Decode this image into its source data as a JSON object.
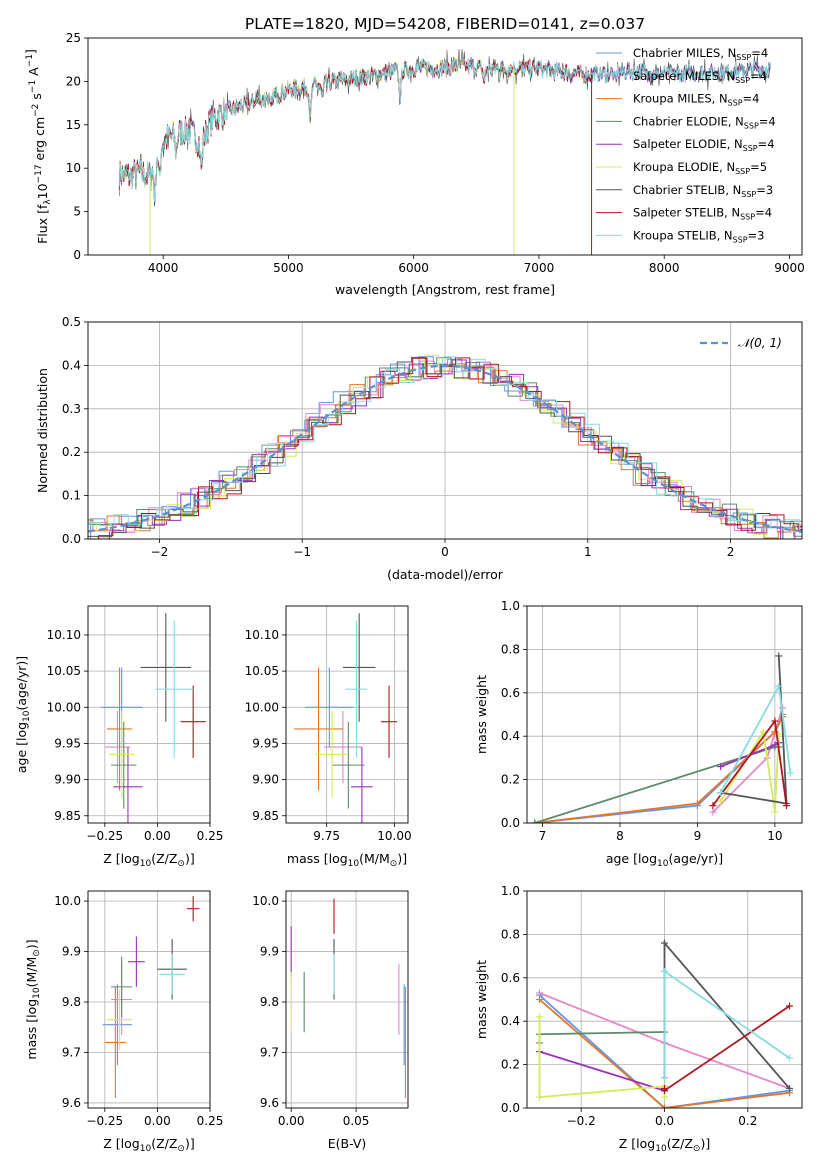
{
  "figure_title": "PLATE=1820, MJD=54208, FIBERID=0141, z=0.037",
  "colors": {
    "Chabrier MILES": "#6495ED",
    "Salpeter MILES": "#E887C7",
    "Kroupa MILES": "#E2772A",
    "Chabrier ELODIE": "#5E8B69",
    "Salpeter ELODIE": "#9B30B8",
    "Kroupa ELODIE": "#D4EC5A",
    "Chabrier STELIB": "#555555",
    "Salpeter STELIB": "#B0151F",
    "Kroupa STELIB": "#86DCE0"
  },
  "chart_data": [
    {
      "id": "spectrum",
      "type": "line",
      "title": "PLATE=1820, MJD=54208, FIBERID=0141, z=0.037",
      "xlabel": "wavelength [Angstrom, rest frame]",
      "ylabel_main": "Flux [f",
      "ylabel_sub": "λ",
      "ylabel_rest": "10",
      "ylabel_exp1": "−17",
      "ylabel_mid": " erg cm",
      "ylabel_exp2": "−2",
      "ylabel_mid2": " s",
      "ylabel_exp3": "−1",
      "ylabel_end": " A",
      "ylabel_exp4": "−1",
      "ylabel_close": "]",
      "xlim": [
        3400,
        9100
      ],
      "ylim": [
        0,
        25
      ],
      "xticks": [
        4000,
        5000,
        6000,
        7000,
        8000,
        9000
      ],
      "yticks": [
        0,
        5,
        10,
        15,
        20,
        25
      ],
      "grid": false,
      "legend_position": "top-right",
      "legend": [
        {
          "name": "Chabrier MILES, N",
          "sub": "SSP",
          "tail": "=4"
        },
        {
          "name": "Salpeter MILES, N",
          "sub": "SSP",
          "tail": "=4"
        },
        {
          "name": "Kroupa MILES, N",
          "sub": "SSP",
          "tail": "=4"
        },
        {
          "name": "Chabrier ELODIE, N",
          "sub": "SSP",
          "tail": "=4"
        },
        {
          "name": "Salpeter ELODIE, N",
          "sub": "SSP",
          "tail": "=4"
        },
        {
          "name": "Kroupa ELODIE, N",
          "sub": "SSP",
          "tail": "=5"
        },
        {
          "name": "Chabrier STELIB, N",
          "sub": "SSP",
          "tail": "=3"
        },
        {
          "name": "Salpeter STELIB, N",
          "sub": "SSP",
          "tail": "=4"
        },
        {
          "name": "Kroupa STELIB, N",
          "sub": "SSP",
          "tail": "=3"
        }
      ],
      "continuum": {
        "x": [
          3650,
          3700,
          3800,
          3900,
          3950,
          4000,
          4100,
          4200,
          4300,
          4400,
          4500,
          4600,
          4800,
          5000,
          5200,
          5400,
          5600,
          5800,
          6000,
          6200,
          6400,
          6600,
          6800,
          7000,
          7200,
          7400,
          7600,
          7800,
          8000,
          8200,
          8400,
          8600,
          8850
        ],
        "y": [
          9.5,
          9.0,
          9.5,
          9.0,
          12.5,
          13.0,
          14.0,
          14.5,
          13.0,
          16.0,
          16.5,
          17.0,
          18.0,
          19.0,
          19.5,
          20.0,
          20.5,
          21.0,
          21.5,
          21.5,
          21.8,
          21.5,
          21.5,
          21.5,
          21.0,
          20.8,
          21.0,
          21.2,
          20.8,
          21.0,
          21.0,
          21.2,
          21.5
        ]
      },
      "absorption_features": [
        {
          "x": 3934,
          "depth": 4.5
        },
        {
          "x": 3969,
          "depth": 4.0
        },
        {
          "x": 4102,
          "depth": 2.0
        },
        {
          "x": 4305,
          "depth": 3.0
        },
        {
          "x": 4861,
          "depth": 1.5
        },
        {
          "x": 5175,
          "depth": 3.5
        },
        {
          "x": 5270,
          "depth": 1.5
        },
        {
          "x": 5892,
          "depth": 3.0
        },
        {
          "x": 6563,
          "depth": 1.5
        },
        {
          "x": 7605,
          "depth": 1.0
        }
      ],
      "drop_lines": [
        {
          "series": "Kroupa ELODIE",
          "x": 3895
        },
        {
          "series": "Kroupa ELODIE",
          "x": 6800
        },
        {
          "series": "Salpeter STELIB",
          "x": 7420
        }
      ],
      "series_end_x": {
        "Kroupa MILES": 7420,
        "Salpeter STELIB": 7420,
        "Kroupa ELODIE": 6800
      }
    },
    {
      "id": "residuals",
      "type": "histogram",
      "xlabel": "(data-model)/error",
      "ylabel": "Normed distribution",
      "xlim": [
        -2.5,
        2.5
      ],
      "ylim": [
        0,
        0.5
      ],
      "xticks": [
        -2,
        -1,
        0,
        1,
        2
      ],
      "xtick_labels": [
        "−2",
        "−1",
        "0",
        "1",
        "2"
      ],
      "yticks": [
        0.0,
        0.1,
        0.2,
        0.3,
        0.4,
        0.5
      ],
      "ytick_labels": [
        "0.0",
        "0.1",
        "0.2",
        "0.3",
        "0.4",
        "0.5"
      ],
      "grid": true,
      "legend_position": "top-right",
      "legend": [
        {
          "name": "𝒩(0, 1)"
        }
      ],
      "bin_width": 0.1,
      "reference_curve": {
        "name": "𝒩(0, 1)",
        "color": "#5B8FD6",
        "style": "dashed"
      }
    },
    {
      "id": "age-vs-Z",
      "type": "errorbar",
      "xlabel": "Z [log",
      "xlabel_sub": "10",
      "xlabel_tail": "(Z/Z",
      "xlabel_sun_sub": "⊙",
      "xlabel_close": ")]",
      "ylabel": "age  [log",
      "ylabel_sub": "10",
      "ylabel_tail": "(age/yr)]",
      "xlim": [
        -0.33,
        0.25
      ],
      "ylim": [
        9.84,
        10.14
      ],
      "xticks": [
        -0.25,
        0.0,
        0.25
      ],
      "xtick_labels": [
        "−0.25",
        "0.00",
        "0.25"
      ],
      "yticks": [
        9.85,
        9.9,
        9.95,
        10.0,
        10.05,
        10.1
      ],
      "ytick_labels": [
        "9.85",
        "9.90",
        "9.95",
        "10.00",
        "10.05",
        "10.10"
      ],
      "grid": true,
      "points": [
        {
          "series": "Chabrier MILES",
          "x": -0.17,
          "xerr": 0.1,
          "y": 10.0,
          "yerr": 0.055
        },
        {
          "series": "Salpeter MILES",
          "x": -0.19,
          "xerr": 0.06,
          "y": 9.945,
          "yerr": 0.05
        },
        {
          "series": "Kroupa MILES",
          "x": -0.18,
          "xerr": 0.06,
          "y": 9.97,
          "yerr": 0.085
        },
        {
          "series": "Chabrier ELODIE",
          "x": -0.16,
          "xerr": 0.06,
          "y": 9.92,
          "yerr": 0.06
        },
        {
          "series": "Salpeter ELODIE",
          "x": -0.14,
          "xerr": 0.07,
          "y": 9.89,
          "yerr": 0.055
        },
        {
          "series": "Kroupa ELODIE",
          "x": -0.17,
          "xerr": 0.06,
          "y": 9.935,
          "yerr": 0.06
        },
        {
          "series": "Chabrier STELIB",
          "x": 0.04,
          "xerr": 0.12,
          "y": 10.055,
          "yerr": 0.075
        },
        {
          "series": "Salpeter STELIB",
          "x": 0.17,
          "xerr": 0.06,
          "y": 9.98,
          "yerr": 0.05
        },
        {
          "series": "Kroupa STELIB",
          "x": 0.08,
          "xerr": 0.09,
          "y": 10.025,
          "yerr": 0.095
        }
      ]
    },
    {
      "id": "age-vs-mass",
      "type": "errorbar",
      "xlabel": "mass [log",
      "xlabel_sub": "10",
      "xlabel_tail": "(M/M",
      "xlabel_sun_sub": "⊙",
      "xlabel_close": ")]",
      "xlim": [
        9.6,
        10.05
      ],
      "ylim": [
        9.84,
        10.14
      ],
      "xticks": [
        9.75,
        10.0
      ],
      "xtick_labels": [
        "9.75",
        "10.00"
      ],
      "yticks": [
        9.85,
        9.9,
        9.95,
        10.0,
        10.05,
        10.1
      ],
      "ytick_labels": [
        "9.85",
        "9.90",
        "9.95",
        "10.00",
        "10.05",
        "10.10"
      ],
      "grid": true,
      "points": [
        {
          "series": "Chabrier MILES",
          "x": 9.76,
          "xerr": 0.09,
          "y": 10.0,
          "yerr": 0.055
        },
        {
          "series": "Salpeter MILES",
          "x": 9.81,
          "xerr": 0.07,
          "y": 9.945,
          "yerr": 0.05
        },
        {
          "series": "Kroupa MILES",
          "x": 9.72,
          "xerr": 0.09,
          "y": 9.97,
          "yerr": 0.085
        },
        {
          "series": "Chabrier ELODIE",
          "x": 9.83,
          "xerr": 0.06,
          "y": 9.92,
          "yerr": 0.06
        },
        {
          "series": "Salpeter ELODIE",
          "x": 9.88,
          "xerr": 0.04,
          "y": 9.89,
          "yerr": 0.055
        },
        {
          "series": "Kroupa ELODIE",
          "x": 9.77,
          "xerr": 0.06,
          "y": 9.935,
          "yerr": 0.06
        },
        {
          "series": "Chabrier STELIB",
          "x": 9.87,
          "xerr": 0.06,
          "y": 10.055,
          "yerr": 0.075
        },
        {
          "series": "Salpeter STELIB",
          "x": 9.98,
          "xerr": 0.03,
          "y": 9.98,
          "yerr": 0.05
        },
        {
          "series": "Kroupa STELIB",
          "x": 9.86,
          "xerr": 0.04,
          "y": 10.025,
          "yerr": 0.095
        }
      ]
    },
    {
      "id": "weight-vs-age",
      "type": "line",
      "xlabel": "age  [log",
      "xlabel_sub": "10",
      "xlabel_tail": "(age/yr)]",
      "ylabel": "mass weight",
      "xlim": [
        6.8,
        10.35
      ],
      "ylim": [
        0,
        1.0
      ],
      "xticks": [
        7,
        8,
        9,
        10
      ],
      "yticks": [
        0.0,
        0.2,
        0.4,
        0.6,
        0.8,
        1.0
      ],
      "ytick_labels": [
        "0.0",
        "0.2",
        "0.4",
        "0.6",
        "0.8",
        "1.0"
      ],
      "grid": true,
      "series": [
        {
          "name": "Chabrier MILES",
          "x": [
            6.9,
            9.0,
            10.0,
            10.1
          ],
          "y": [
            0.0,
            0.08,
            0.42,
            0.5
          ]
        },
        {
          "name": "Salpeter MILES",
          "x": [
            9.2,
            9.9,
            10.1
          ],
          "y": [
            0.05,
            0.3,
            0.53
          ]
        },
        {
          "name": "Kroupa MILES",
          "x": [
            6.9,
            9.0,
            10.0,
            10.1
          ],
          "y": [
            0.0,
            0.09,
            0.42,
            0.49
          ]
        },
        {
          "name": "Chabrier ELODIE",
          "x": [
            6.9,
            10.0,
            10.05
          ],
          "y": [
            0.0,
            0.35,
            0.35
          ]
        },
        {
          "name": "Salpeter ELODIE",
          "x": [
            9.3,
            10.0,
            10.05
          ],
          "y": [
            0.26,
            0.36,
            0.37
          ]
        },
        {
          "name": "Kroupa ELODIE",
          "x": [
            9.3,
            9.85,
            10.0,
            10.05
          ],
          "y": [
            0.1,
            0.42,
            0.05,
            0.41
          ]
        },
        {
          "name": "Chabrier STELIB",
          "x": [
            9.3,
            10.15,
            10.05
          ],
          "y": [
            0.14,
            0.09,
            0.77
          ]
        },
        {
          "name": "Salpeter STELIB",
          "x": [
            9.2,
            10.0,
            10.15
          ],
          "y": [
            0.08,
            0.47,
            0.08
          ]
        },
        {
          "name": "Kroupa STELIB",
          "x": [
            9.3,
            10.05,
            10.2
          ],
          "y": [
            0.14,
            0.63,
            0.23
          ]
        }
      ]
    },
    {
      "id": "mass-vs-Z",
      "type": "errorbar",
      "xlabel": "Z [log",
      "xlabel_sub": "10",
      "xlabel_tail": "(Z/Z",
      "xlabel_sun_sub": "⊙",
      "xlabel_close": ")]",
      "ylabel": "mass [log",
      "ylabel_sub": "10",
      "ylabel_tail": "(M/M",
      "ylabel_sun_sub": "⊙",
      "ylabel_close": ")]",
      "xlim": [
        -0.33,
        0.25
      ],
      "ylim": [
        9.59,
        10.02
      ],
      "xticks": [
        -0.25,
        0.0,
        0.25
      ],
      "xtick_labels": [
        "−0.25",
        "0.00",
        "0.25"
      ],
      "yticks": [
        9.6,
        9.7,
        9.8,
        9.9,
        10.0
      ],
      "ytick_labels": [
        "9.6",
        "9.7",
        "9.8",
        "9.9",
        "10.0"
      ],
      "grid": true,
      "points": [
        {
          "series": "Chabrier MILES",
          "x": -0.19,
          "xerr": 0.07,
          "y": 9.755,
          "yerr": 0.08
        },
        {
          "series": "Salpeter MILES",
          "x": -0.17,
          "xerr": 0.05,
          "y": 9.805,
          "yerr": 0.07
        },
        {
          "series": "Kroupa MILES",
          "x": -0.2,
          "xerr": 0.05,
          "y": 9.72,
          "yerr": 0.11
        },
        {
          "series": "Chabrier ELODIE",
          "x": -0.17,
          "xerr": 0.05,
          "y": 9.83,
          "yerr": 0.06
        },
        {
          "series": "Salpeter ELODIE",
          "x": -0.1,
          "xerr": 0.04,
          "y": 9.88,
          "yerr": 0.05
        },
        {
          "series": "Kroupa ELODIE",
          "x": -0.18,
          "xerr": 0.06,
          "y": 9.765,
          "yerr": 0.06
        },
        {
          "series": "Chabrier STELIB",
          "x": 0.07,
          "xerr": 0.07,
          "y": 9.865,
          "yerr": 0.06
        },
        {
          "series": "Salpeter STELIB",
          "x": 0.17,
          "xerr": 0.03,
          "y": 9.985,
          "yerr": 0.025
        },
        {
          "series": "Kroupa STELIB",
          "x": 0.07,
          "xerr": 0.06,
          "y": 9.855,
          "yerr": 0.04
        }
      ]
    },
    {
      "id": "mass-vs-ebv",
      "type": "errorbar",
      "xlabel": "E(B-V)",
      "xlim": [
        -0.004,
        0.09
      ],
      "ylim": [
        9.59,
        10.02
      ],
      "xticks": [
        0.0,
        0.05
      ],
      "xtick_labels": [
        "0.00",
        "0.05"
      ],
      "yticks": [
        9.6,
        9.7,
        9.8,
        9.9,
        10.0
      ],
      "ytick_labels": [
        "9.6",
        "9.7",
        "9.8",
        "9.9",
        "10.0"
      ],
      "grid": true,
      "points": [
        {
          "series": "Chabrier MILES",
          "x": 0.087,
          "xerr": 0.0,
          "y": 9.755,
          "yerr": 0.08
        },
        {
          "series": "Salpeter MILES",
          "x": 0.083,
          "xerr": 0.0,
          "y": 9.805,
          "yerr": 0.07
        },
        {
          "series": "Kroupa MILES",
          "x": 0.088,
          "xerr": 0.0,
          "y": 9.72,
          "yerr": 0.11
        },
        {
          "series": "Chabrier ELODIE",
          "x": 0.01,
          "xerr": 0.0,
          "y": 9.8,
          "yerr": 0.06
        },
        {
          "series": "Salpeter ELODIE",
          "x": 0.0,
          "xerr": 0.0,
          "y": 9.9,
          "yerr": 0.05
        },
        {
          "series": "Kroupa ELODIE",
          "x": 0.0,
          "xerr": 0.0,
          "y": 9.8,
          "yerr": 0.06
        },
        {
          "series": "Chabrier STELIB",
          "x": 0.033,
          "xerr": 0.0,
          "y": 9.865,
          "yerr": 0.06
        },
        {
          "series": "Salpeter STELIB",
          "x": 0.033,
          "xerr": 0.0,
          "y": 9.97,
          "yerr": 0.035
        },
        {
          "series": "Kroupa STELIB",
          "x": 0.033,
          "xerr": 0.0,
          "y": 9.855,
          "yerr": 0.04
        }
      ]
    },
    {
      "id": "weight-vs-Z",
      "type": "line",
      "xlabel": "Z [log",
      "xlabel_sub": "10",
      "xlabel_tail": "(Z/Z",
      "xlabel_sun_sub": "⊙",
      "xlabel_close": ")]",
      "ylabel": "mass weight",
      "xlim": [
        -0.33,
        0.33
      ],
      "ylim": [
        0,
        1.0
      ],
      "xticks": [
        -0.2,
        0.0,
        0.2
      ],
      "xtick_labels": [
        "−0.2",
        "0.0",
        "0.2"
      ],
      "yticks": [
        0.0,
        0.2,
        0.4,
        0.6,
        0.8,
        1.0
      ],
      "ytick_labels": [
        "0.0",
        "0.2",
        "0.4",
        "0.6",
        "0.8",
        "1.0"
      ],
      "grid": true,
      "series": [
        {
          "name": "Chabrier MILES",
          "x": [
            -0.3,
            0.0,
            0.3
          ],
          "y": [
            0.52,
            0.0,
            0.08
          ]
        },
        {
          "name": "Salpeter MILES",
          "x": [
            -0.3,
            0.0,
            0.3
          ],
          "y": [
            0.53,
            0.3,
            0.09
          ]
        },
        {
          "name": "Kroupa MILES",
          "x": [
            -0.3,
            0.0,
            0.3
          ],
          "y": [
            0.5,
            0.0,
            0.07
          ]
        },
        {
          "name": "Chabrier ELODIE",
          "x": [
            -0.3,
            -0.3,
            0.0
          ],
          "y": [
            0.3,
            0.34,
            0.35
          ]
        },
        {
          "name": "Salpeter ELODIE",
          "x": [
            -0.3,
            0.0,
            0.0
          ],
          "y": [
            0.26,
            0.08,
            0.1
          ]
        },
        {
          "name": "Kroupa ELODIE",
          "x": [
            -0.3,
            -0.3,
            0.0,
            0.0
          ],
          "y": [
            0.42,
            0.05,
            0.1,
            0.05
          ]
        },
        {
          "name": "Chabrier STELIB",
          "x": [
            0.0,
            0.0,
            0.3
          ],
          "y": [
            0.14,
            0.76,
            0.09
          ]
        },
        {
          "name": "Salpeter STELIB",
          "x": [
            0.0,
            0.0,
            0.3
          ],
          "y": [
            0.09,
            0.08,
            0.47
          ]
        },
        {
          "name": "Kroupa STELIB",
          "x": [
            0.0,
            0.0,
            0.3
          ],
          "y": [
            0.14,
            0.63,
            0.23
          ]
        }
      ]
    }
  ]
}
